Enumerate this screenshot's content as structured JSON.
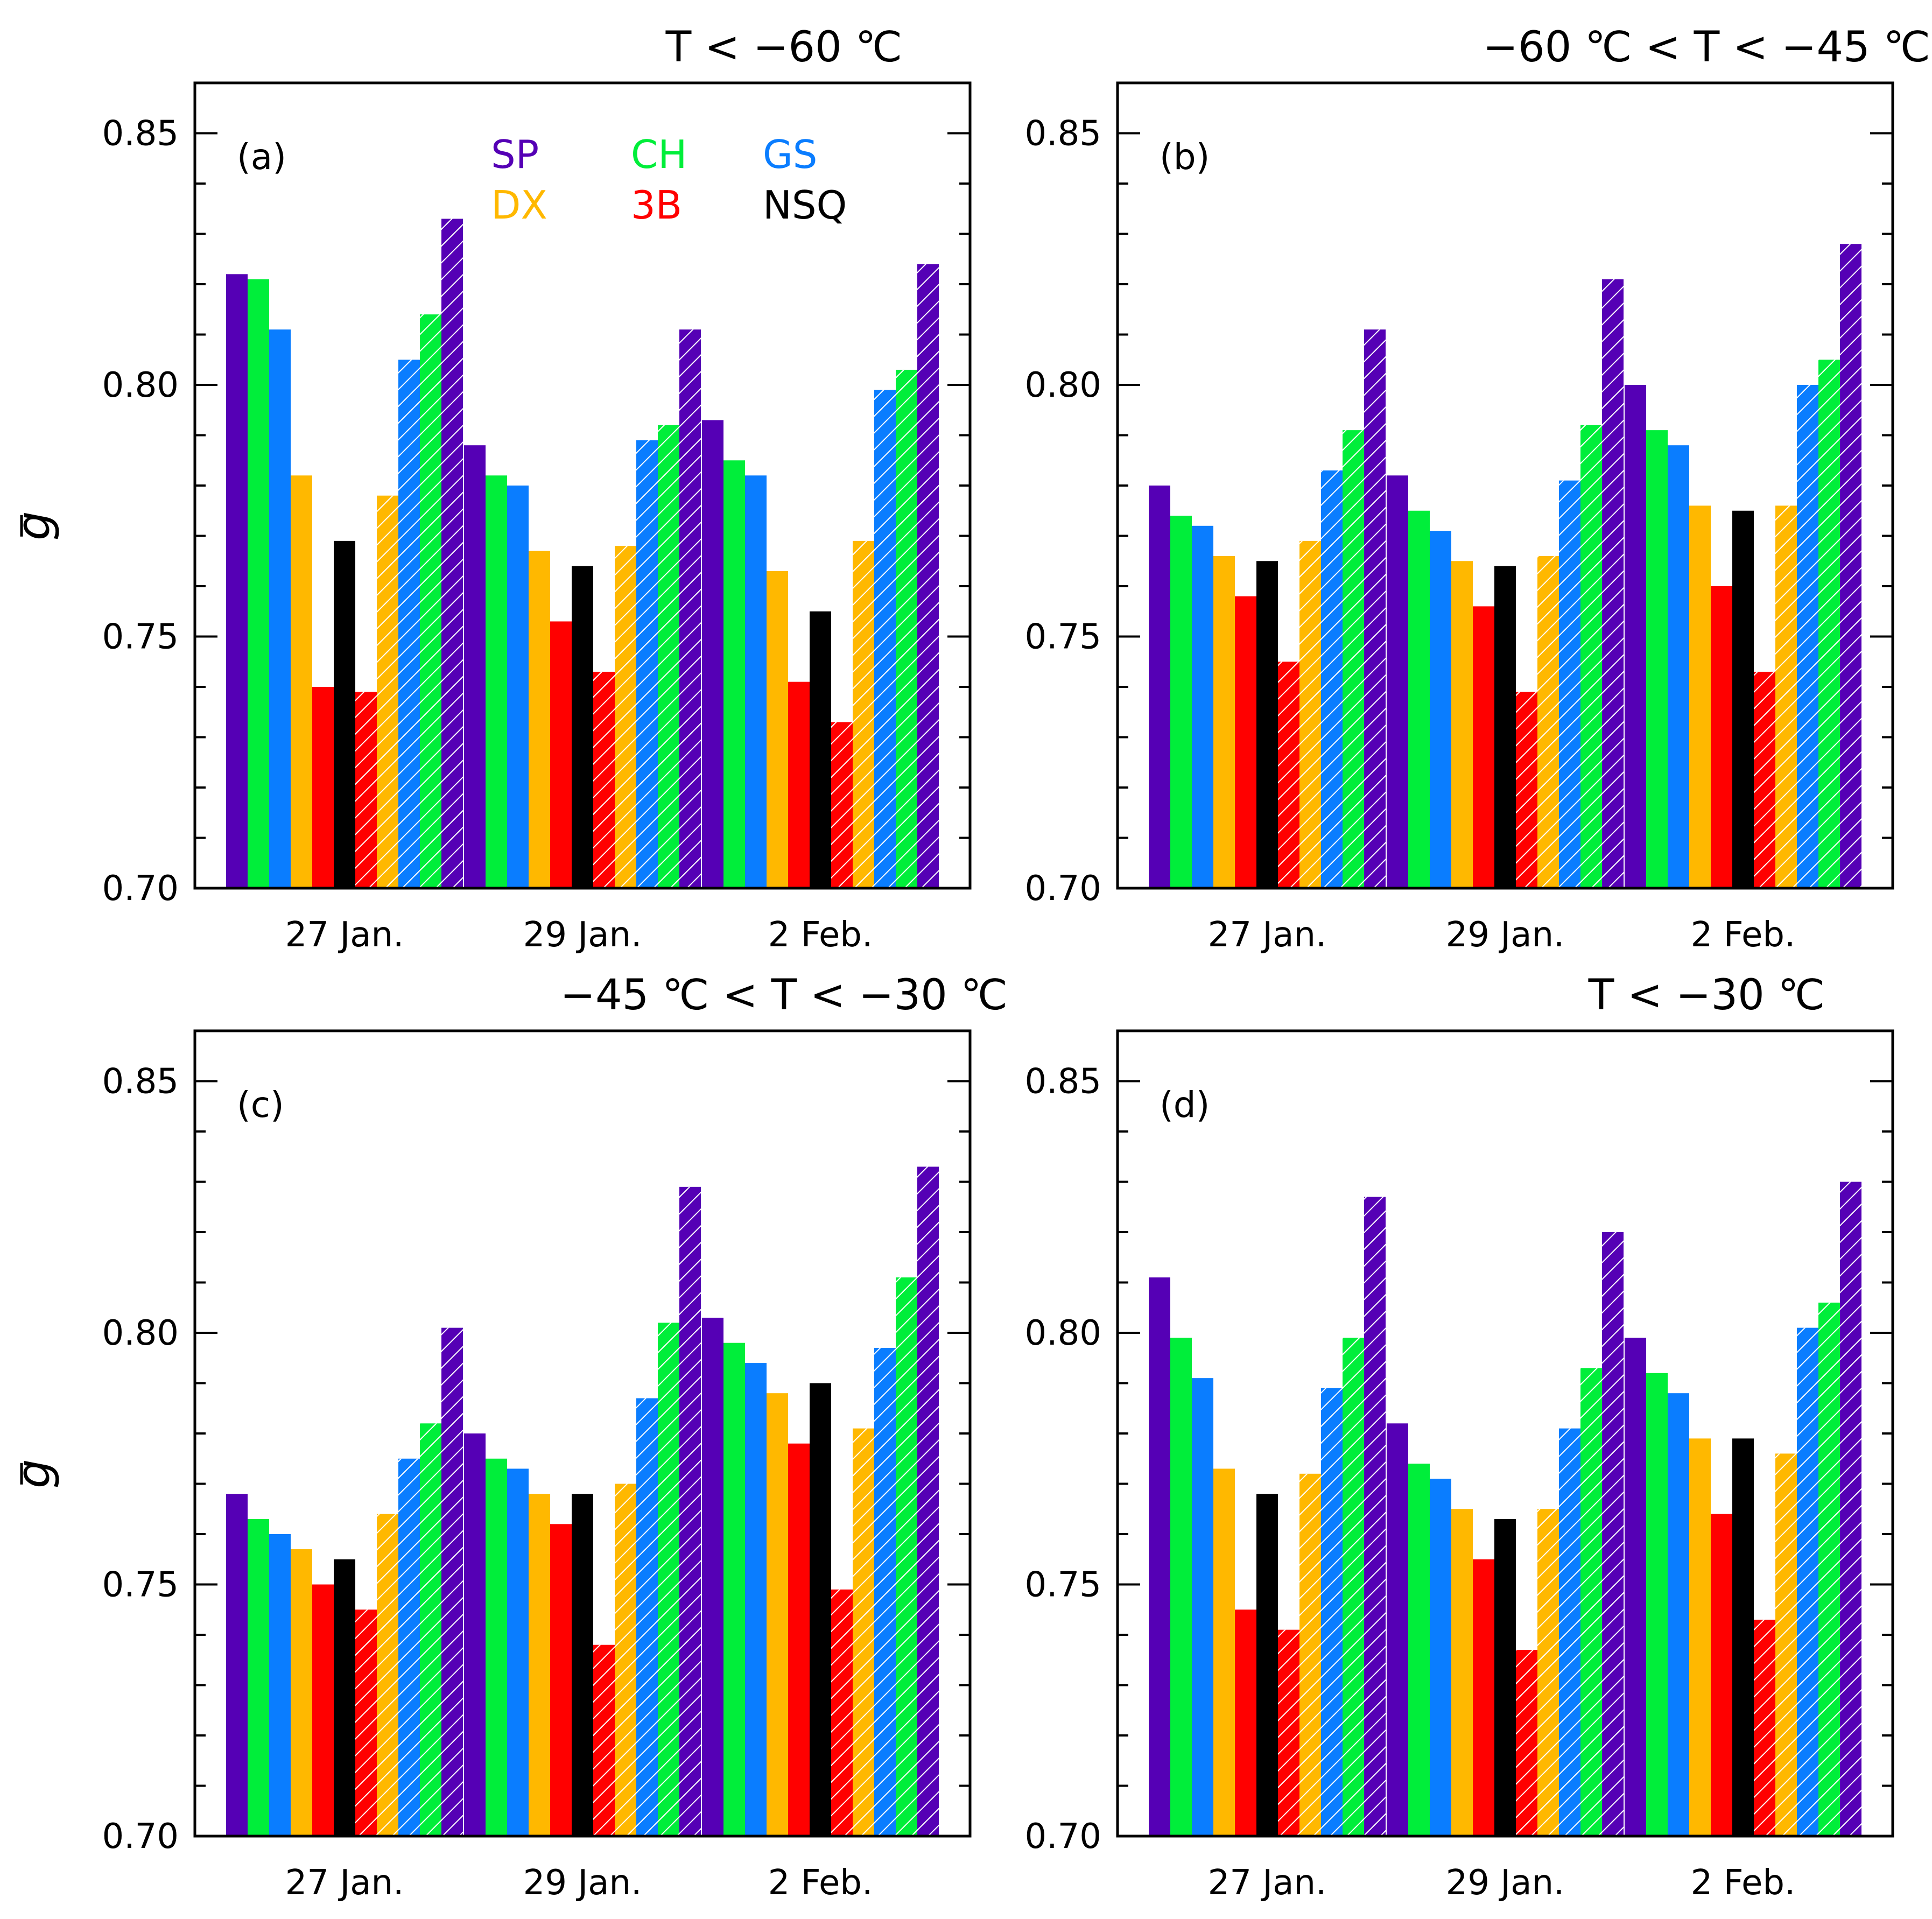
{
  "figure": {
    "ylabel": "g",
    "colors": {
      "SP": "#5500B5",
      "CH": "#00EE3A",
      "GS": "#0A7DFF",
      "DX": "#FFB800",
      "3B": "#FF0000",
      "NSQ": "#000000"
    },
    "legend": [
      {
        "name": "SP",
        "color": "#5500B5"
      },
      {
        "name": "CH",
        "color": "#00EE3A"
      },
      {
        "name": "GS",
        "color": "#0A7DFF"
      },
      {
        "name": "DX",
        "color": "#FFB800"
      },
      {
        "name": "3B",
        "color": "#FF0000"
      },
      {
        "name": "NSQ",
        "color": "#000000"
      }
    ],
    "bar_order": [
      "SP",
      "CH",
      "GS",
      "DX",
      "3B",
      "NSQ",
      "3B",
      "DX",
      "GS",
      "CH",
      "SP"
    ],
    "hatched": [
      false,
      false,
      false,
      false,
      false,
      false,
      true,
      true,
      true,
      true,
      true
    ],
    "legend_panel": "(a)"
  },
  "chart_data": [
    {
      "type": "bar",
      "panel_label": "(a)",
      "title": "T < −60 ℃",
      "ylabel": "g",
      "ylim": [
        0.7,
        0.86
      ],
      "yticks": [
        "0.70",
        "0.75",
        "0.80",
        "0.85"
      ],
      "categories": [
        "27 Jan.",
        "29 Jan.",
        "2 Feb."
      ],
      "values": [
        [
          0.822,
          0.821,
          0.811,
          0.782,
          0.74,
          0.769,
          0.739,
          0.778,
          0.805,
          0.814,
          0.833
        ],
        [
          0.788,
          0.782,
          0.78,
          0.767,
          0.753,
          0.764,
          0.743,
          0.768,
          0.789,
          0.792,
          0.811
        ],
        [
          0.793,
          0.785,
          0.782,
          0.763,
          0.741,
          0.755,
          0.733,
          0.769,
          0.799,
          0.803,
          0.824
        ]
      ]
    },
    {
      "type": "bar",
      "panel_label": "(b)",
      "title": "−60 ℃ < T < −45 ℃",
      "ylabel": "",
      "ylim": [
        0.7,
        0.86
      ],
      "yticks": [
        "0.70",
        "0.75",
        "0.80",
        "0.85"
      ],
      "categories": [
        "27 Jan.",
        "29 Jan.",
        "2 Feb."
      ],
      "values": [
        [
          0.78,
          0.774,
          0.772,
          0.766,
          0.758,
          0.765,
          0.745,
          0.769,
          0.783,
          0.791,
          0.811
        ],
        [
          0.782,
          0.775,
          0.771,
          0.765,
          0.756,
          0.764,
          0.739,
          0.766,
          0.781,
          0.792,
          0.821
        ],
        [
          0.8,
          0.791,
          0.788,
          0.776,
          0.76,
          0.775,
          0.743,
          0.776,
          0.8,
          0.805,
          0.828
        ]
      ]
    },
    {
      "type": "bar",
      "panel_label": "(c)",
      "title": "−45 ℃ < T < −30 ℃",
      "ylabel": "g",
      "ylim": [
        0.7,
        0.86
      ],
      "yticks": [
        "0.70",
        "0.75",
        "0.80",
        "0.85"
      ],
      "categories": [
        "27 Jan.",
        "29 Jan.",
        "2 Feb."
      ],
      "values": [
        [
          0.768,
          0.763,
          0.76,
          0.757,
          0.75,
          0.755,
          0.745,
          0.764,
          0.775,
          0.782,
          0.801
        ],
        [
          0.78,
          0.775,
          0.773,
          0.768,
          0.762,
          0.768,
          0.738,
          0.77,
          0.787,
          0.802,
          0.829
        ],
        [
          0.803,
          0.798,
          0.794,
          0.788,
          0.778,
          0.79,
          0.749,
          0.781,
          0.797,
          0.811,
          0.833
        ]
      ]
    },
    {
      "type": "bar",
      "panel_label": "(d)",
      "title": "T < −30 ℃",
      "ylabel": "",
      "ylim": [
        0.7,
        0.86
      ],
      "yticks": [
        "0.70",
        "0.75",
        "0.80",
        "0.85"
      ],
      "categories": [
        "27 Jan.",
        "29 Jan.",
        "2 Feb."
      ],
      "values": [
        [
          0.811,
          0.799,
          0.791,
          0.773,
          0.745,
          0.768,
          0.741,
          0.772,
          0.789,
          0.799,
          0.827
        ],
        [
          0.782,
          0.774,
          0.771,
          0.765,
          0.755,
          0.763,
          0.737,
          0.765,
          0.781,
          0.793,
          0.82
        ],
        [
          0.799,
          0.792,
          0.788,
          0.779,
          0.764,
          0.779,
          0.743,
          0.776,
          0.801,
          0.806,
          0.83
        ]
      ]
    }
  ]
}
